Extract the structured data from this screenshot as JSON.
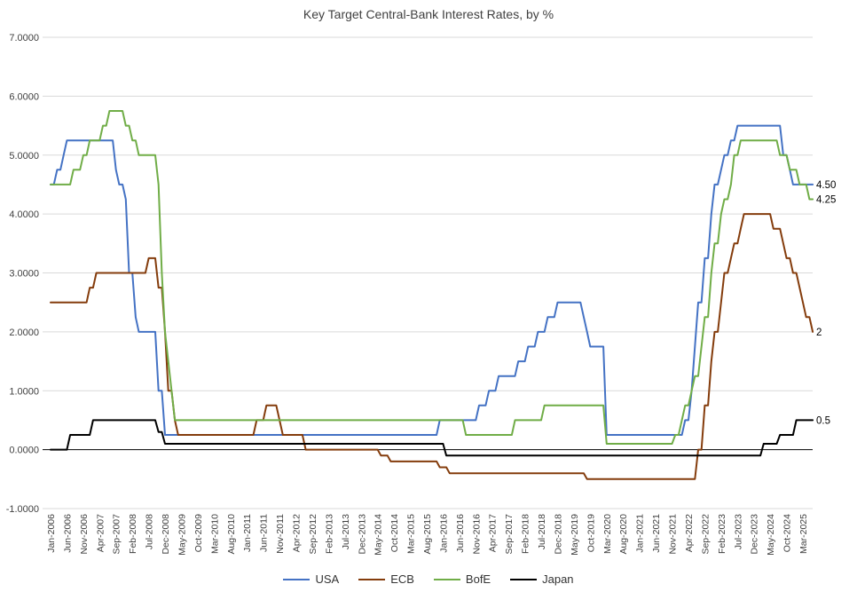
{
  "chart_data": {
    "type": "line",
    "title": "Key Target Central-Bank Interest Rates, by %",
    "x_start": "2006-01",
    "x_end": "2025-06",
    "x_interval": "monthly",
    "x_tick_every": 5,
    "x_tick_labels": [
      "Jan-2006",
      "Jun-2006",
      "Nov-2006",
      "Apr-2007",
      "Sep-2007",
      "Feb-2008",
      "Jul-2008",
      "Dec-2008",
      "May-2009",
      "Oct-2009",
      "Mar-2010",
      "Aug-2010",
      "Jan-2011",
      "Jun-2011",
      "Nov-2011",
      "Apr-2012",
      "Sep-2012",
      "Feb-2013",
      "Jul-2013",
      "Dec-2013",
      "May-2014",
      "Oct-2014",
      "Mar-2015",
      "Aug-2015",
      "Jan-2016",
      "Jun-2016",
      "Nov-2016",
      "Apr-2017",
      "Sep-2017",
      "Feb-2018",
      "Jul-2018",
      "Dec-2018",
      "May-2019",
      "Oct-2019",
      "Mar-2020",
      "Aug-2020",
      "Jan-2021",
      "Jun-2021",
      "Nov-2021",
      "Apr-2022",
      "Sep-2022",
      "Feb-2023",
      "Jul-2023",
      "Dec-2023",
      "May-2024",
      "Oct-2024",
      "Mar-2025"
    ],
    "ylim": [
      -1,
      7
    ],
    "y_ticks": [
      7,
      6,
      5,
      4,
      3,
      2,
      1,
      0,
      -1
    ],
    "y_tick_labels": [
      "7.0000",
      "6.0000",
      "5.0000",
      "4.0000",
      "3.0000",
      "2.0000",
      "1.0000",
      "0.0000",
      "-1.0000"
    ],
    "grid": true,
    "zero_axis": true,
    "legend_position": "bottom",
    "interpolation": "monthly values carried forward between listed rate changes",
    "series": [
      {
        "name": "USA",
        "color": "#4472C4",
        "changes": [
          [
            "2006-01",
            4.5
          ],
          [
            "2006-03",
            4.75
          ],
          [
            "2006-05",
            5.0
          ],
          [
            "2006-06",
            5.25
          ],
          [
            "2007-09",
            4.75
          ],
          [
            "2007-10",
            4.5
          ],
          [
            "2007-12",
            4.25
          ],
          [
            "2008-01",
            3.0
          ],
          [
            "2008-03",
            2.25
          ],
          [
            "2008-04",
            2.0
          ],
          [
            "2008-10",
            1.0
          ],
          [
            "2008-12",
            0.25
          ],
          [
            "2015-12",
            0.5
          ],
          [
            "2016-12",
            0.75
          ],
          [
            "2017-03",
            1.0
          ],
          [
            "2017-06",
            1.25
          ],
          [
            "2017-12",
            1.5
          ],
          [
            "2018-03",
            1.75
          ],
          [
            "2018-06",
            2.0
          ],
          [
            "2018-09",
            2.25
          ],
          [
            "2018-12",
            2.5
          ],
          [
            "2019-08",
            2.25
          ],
          [
            "2019-09",
            2.0
          ],
          [
            "2019-10",
            1.75
          ],
          [
            "2020-03",
            0.25
          ],
          [
            "2022-03",
            0.5
          ],
          [
            "2022-05",
            1.0
          ],
          [
            "2022-06",
            1.75
          ],
          [
            "2022-07",
            2.5
          ],
          [
            "2022-09",
            3.25
          ],
          [
            "2022-11",
            4.0
          ],
          [
            "2022-12",
            4.5
          ],
          [
            "2023-02",
            4.75
          ],
          [
            "2023-03",
            5.0
          ],
          [
            "2023-05",
            5.25
          ],
          [
            "2023-07",
            5.5
          ],
          [
            "2024-09",
            5.0
          ],
          [
            "2024-11",
            4.75
          ],
          [
            "2024-12",
            4.5
          ]
        ]
      },
      {
        "name": "ECB",
        "color": "#843C0C",
        "changes": [
          [
            "2006-01",
            2.5
          ],
          [
            "2007-01",
            2.75
          ],
          [
            "2007-03",
            3.0
          ],
          [
            "2008-07",
            3.25
          ],
          [
            "2008-10",
            2.75
          ],
          [
            "2008-12",
            2.0
          ],
          [
            "2009-01",
            1.0
          ],
          [
            "2009-03",
            0.5
          ],
          [
            "2009-04",
            0.25
          ],
          [
            "2011-04",
            0.5
          ],
          [
            "2011-07",
            0.75
          ],
          [
            "2011-11",
            0.5
          ],
          [
            "2011-12",
            0.25
          ],
          [
            "2012-07",
            0.0
          ],
          [
            "2014-06",
            -0.1
          ],
          [
            "2014-09",
            -0.2
          ],
          [
            "2015-12",
            -0.3
          ],
          [
            "2016-03",
            -0.4
          ],
          [
            "2019-09",
            -0.5
          ],
          [
            "2022-07",
            0.0
          ],
          [
            "2022-09",
            0.75
          ],
          [
            "2022-11",
            1.5
          ],
          [
            "2022-12",
            2.0
          ],
          [
            "2023-02",
            2.5
          ],
          [
            "2023-03",
            3.0
          ],
          [
            "2023-05",
            3.25
          ],
          [
            "2023-06",
            3.5
          ],
          [
            "2023-08",
            3.75
          ],
          [
            "2023-09",
            4.0
          ],
          [
            "2024-06",
            3.75
          ],
          [
            "2024-09",
            3.5
          ],
          [
            "2024-10",
            3.25
          ],
          [
            "2024-12",
            3.0
          ],
          [
            "2025-02",
            2.75
          ],
          [
            "2025-03",
            2.5
          ],
          [
            "2025-04",
            2.25
          ],
          [
            "2025-06",
            2.0
          ]
        ]
      },
      {
        "name": "BofE",
        "color": "#70AD47",
        "changes": [
          [
            "2006-01",
            4.5
          ],
          [
            "2006-08",
            4.75
          ],
          [
            "2006-11",
            5.0
          ],
          [
            "2007-01",
            5.25
          ],
          [
            "2007-05",
            5.5
          ],
          [
            "2007-07",
            5.75
          ],
          [
            "2007-12",
            5.5
          ],
          [
            "2008-02",
            5.25
          ],
          [
            "2008-04",
            5.0
          ],
          [
            "2008-10",
            4.5
          ],
          [
            "2008-11",
            3.0
          ],
          [
            "2008-12",
            2.0
          ],
          [
            "2009-01",
            1.5
          ],
          [
            "2009-02",
            1.0
          ],
          [
            "2009-03",
            0.5
          ],
          [
            "2016-08",
            0.25
          ],
          [
            "2017-11",
            0.5
          ],
          [
            "2018-08",
            0.75
          ],
          [
            "2020-03",
            0.1
          ],
          [
            "2021-12",
            0.25
          ],
          [
            "2022-02",
            0.5
          ],
          [
            "2022-03",
            0.75
          ],
          [
            "2022-05",
            1.0
          ],
          [
            "2022-06",
            1.25
          ],
          [
            "2022-08",
            1.75
          ],
          [
            "2022-09",
            2.25
          ],
          [
            "2022-11",
            3.0
          ],
          [
            "2022-12",
            3.5
          ],
          [
            "2023-02",
            4.0
          ],
          [
            "2023-03",
            4.25
          ],
          [
            "2023-05",
            4.5
          ],
          [
            "2023-06",
            5.0
          ],
          [
            "2023-08",
            5.25
          ],
          [
            "2024-08",
            5.0
          ],
          [
            "2024-11",
            4.75
          ],
          [
            "2025-02",
            4.5
          ],
          [
            "2025-05",
            4.25
          ]
        ]
      },
      {
        "name": "Japan",
        "color": "#000000",
        "changes": [
          [
            "2006-01",
            0.0
          ],
          [
            "2006-07",
            0.25
          ],
          [
            "2007-02",
            0.5
          ],
          [
            "2008-10",
            0.3
          ],
          [
            "2008-12",
            0.1
          ],
          [
            "2016-02",
            -0.1
          ],
          [
            "2024-03",
            0.1
          ],
          [
            "2024-08",
            0.25
          ],
          [
            "2025-01",
            0.5
          ]
        ]
      }
    ],
    "end_labels": [
      {
        "series": "USA",
        "text": "4.50",
        "value": 4.5
      },
      {
        "series": "BofE",
        "text": "4.25",
        "value": 4.25
      },
      {
        "series": "ECB",
        "text": "2",
        "value": 2.0
      },
      {
        "series": "Japan",
        "text": "0.5",
        "value": 0.5
      }
    ]
  }
}
